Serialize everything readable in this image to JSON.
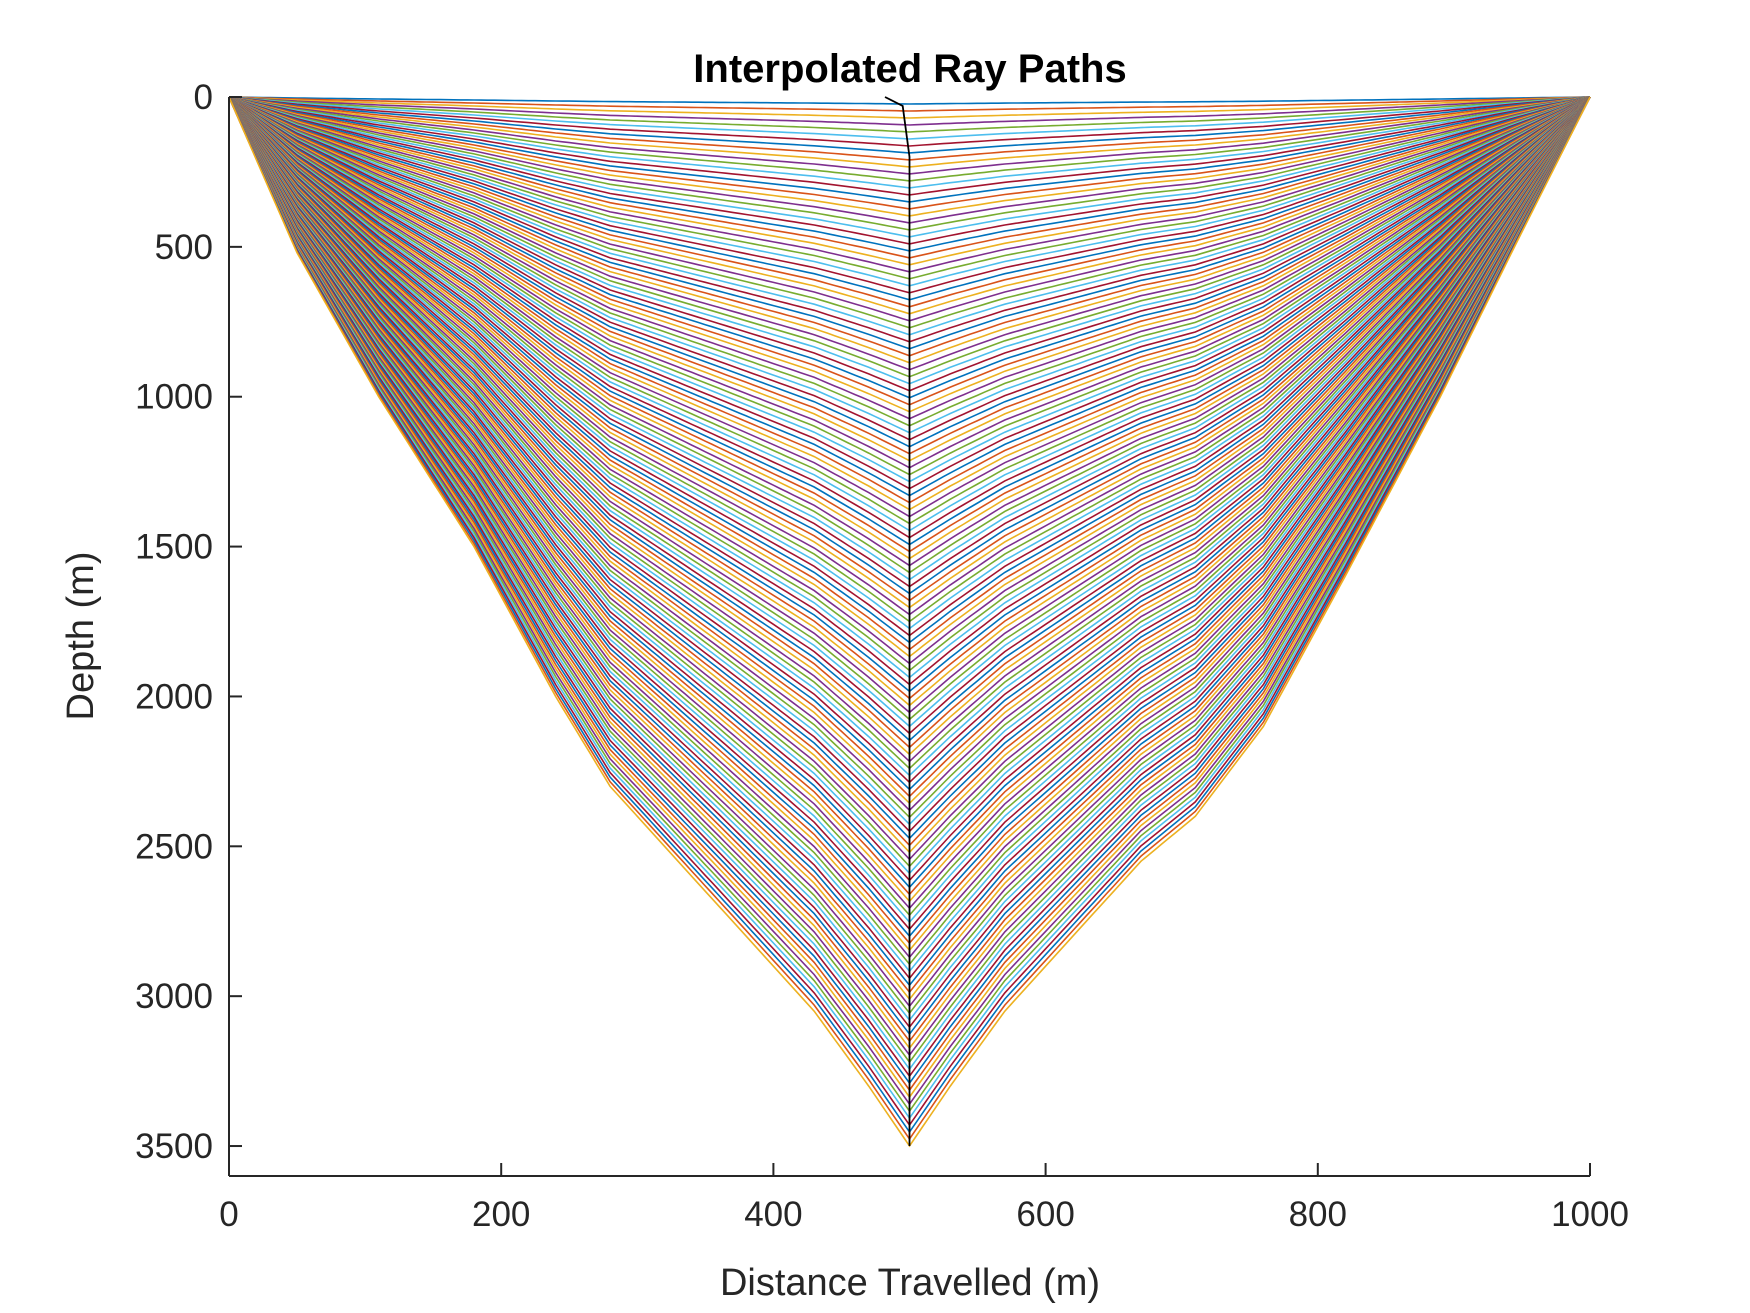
{
  "chart_data": {
    "type": "line",
    "title": "Interpolated Ray Paths",
    "xlabel": "Distance Travelled (m)",
    "ylabel": "Depth (m)",
    "xlim": [
      0,
      1000
    ],
    "ylim": [
      0,
      3600
    ],
    "y_reversed": true,
    "x_ticks": [
      "0",
      "200",
      "400",
      "600",
      "800",
      "1000"
    ],
    "y_ticks": [
      "0",
      "500",
      "1000",
      "1500",
      "2000",
      "2500",
      "3000",
      "3500"
    ],
    "grid": false,
    "legend": "none",
    "source_x": 0,
    "receiver_x": 1000,
    "ray_count": 150,
    "max_turning_depth": 3500,
    "outermost_ray": {
      "x": [
        0,
        50,
        110,
        180,
        240,
        280,
        330,
        380,
        430,
        470,
        500,
        530,
        570,
        620,
        670,
        710,
        760,
        820,
        890,
        950,
        1000
      ],
      "y": [
        0,
        520,
        1000,
        1500,
        2000,
        2300,
        2550,
        2800,
        3050,
        3300,
        3500,
        3300,
        3050,
        2800,
        2550,
        2400,
        2100,
        1600,
        1000,
        450,
        0
      ]
    },
    "turning_point_curve": {
      "x": [
        482,
        495,
        500,
        500,
        500
      ],
      "y": [
        0,
        30,
        200,
        1500,
        3500
      ]
    },
    "series_colors": [
      "#0072BD",
      "#D95319",
      "#EDB120",
      "#7E2F8E",
      "#77AC30",
      "#4DBEEE",
      "#A2142F"
    ],
    "turning_curve_color": "#000000"
  }
}
